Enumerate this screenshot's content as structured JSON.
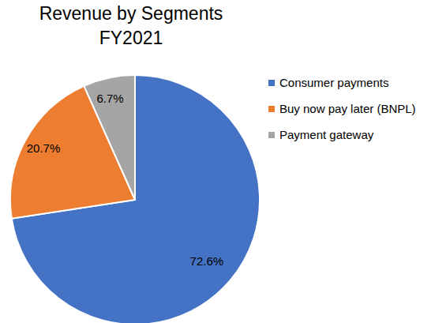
{
  "chart_data": {
    "type": "pie",
    "title": "Revenue by Segments",
    "subtitle": "FY2021",
    "categories": [
      "Consumer payments",
      "Buy now pay later (BNPL)",
      "Payment gateway"
    ],
    "values": [
      72.6,
      20.7,
      6.7
    ],
    "value_labels": [
      "72.6%",
      "20.7%",
      "6.7%"
    ],
    "colors": [
      "#4472c4",
      "#ed7d31",
      "#a5a5a5"
    ],
    "data_labels": true,
    "legend": "right"
  }
}
